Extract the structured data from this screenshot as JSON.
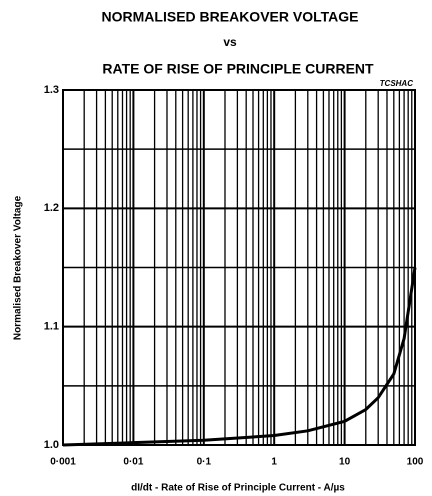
{
  "chart_data": {
    "type": "line",
    "title": "NORMALISED BREAKOVER VOLTAGE",
    "subtitle": "vs",
    "subtitle2": "RATE OF RISE OF PRINCIPLE CURRENT",
    "annotation": "TCSHAC",
    "xlabel": "dI/dt - Rate of Rise of Principle Current - A/µs",
    "ylabel": "Normalised Breakover Voltage",
    "xscale": "log",
    "minor_grid": true,
    "grid": true,
    "xlim": [
      0.001,
      100
    ],
    "ylim": [
      1.0,
      1.3
    ],
    "xticks": [
      {
        "value": 0.001,
        "label": "0·001"
      },
      {
        "value": 0.01,
        "label": "0·01"
      },
      {
        "value": 0.1,
        "label": "0·1"
      },
      1,
      10,
      100
    ],
    "yticks": [
      {
        "value": 1.0,
        "label": "1.0"
      },
      1.1,
      1.2,
      1.3
    ],
    "yminor": [
      1.05,
      1.15,
      1.25
    ],
    "series": [
      {
        "name": "Normalised Breakover Voltage",
        "color": "#000000",
        "x": [
          0.001,
          0.01,
          0.1,
          1,
          3,
          10,
          20,
          30,
          50,
          70,
          100
        ],
        "values": [
          1.0,
          1.002,
          1.004,
          1.008,
          1.012,
          1.02,
          1.03,
          1.04,
          1.06,
          1.09,
          1.15
        ]
      }
    ]
  }
}
